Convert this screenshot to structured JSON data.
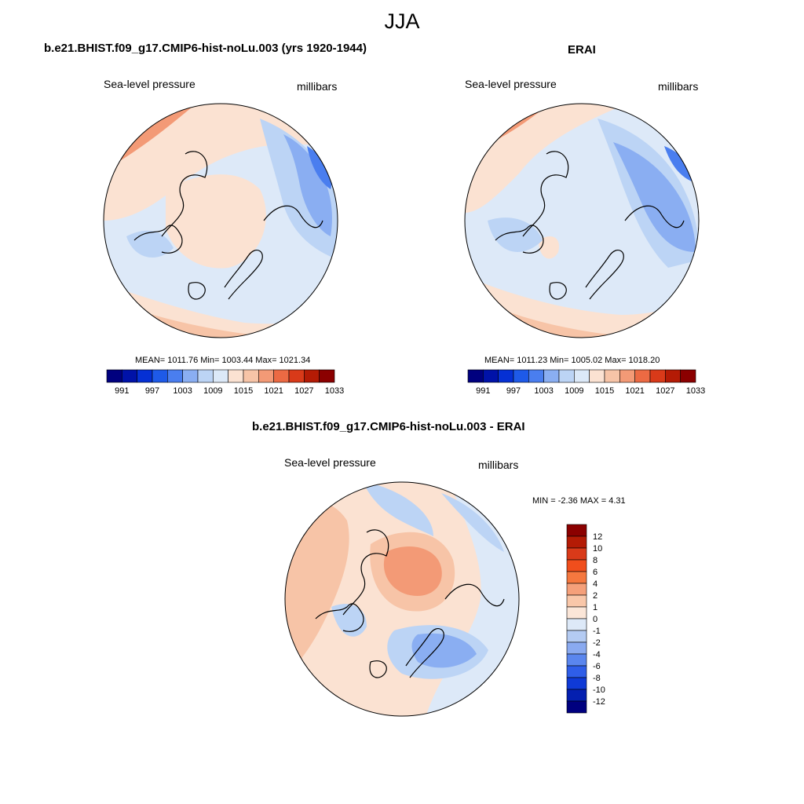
{
  "figure": {
    "title": "JJA",
    "panels": [
      {
        "title": "b.e21.BHIST.f09_g17.CMIP6-hist-noLu.003 (yrs 1920-1944)",
        "variable": "Sea-level pressure",
        "units": "millibars",
        "stats": "MEAN= 1011.76  Min= 1003.44  Max= 1021.34"
      },
      {
        "title": "ERAI",
        "variable": "Sea-level pressure",
        "units": "millibars",
        "stats": "MEAN= 1011.23  Min= 1005.02  Max= 1018.20"
      },
      {
        "title": "b.e21.BHIST.f09_g17.CMIP6-hist-noLu.003 - ERAI",
        "variable": "Sea-level pressure",
        "units": "millibars",
        "stats": "MIN =  -2.36 MAX =   4.31"
      }
    ]
  },
  "colorbars": {
    "absolute": {
      "tick_labels": [
        "991",
        "997",
        "1003",
        "1009",
        "1015",
        "1021",
        "1027",
        "1033"
      ],
      "colors": [
        "#00007f",
        "#0012a8",
        "#0530d4",
        "#1e5ae8",
        "#4a7eef",
        "#8aaef2",
        "#bcd4f5",
        "#dce9f8",
        "#fbe2d2",
        "#f7c4a7",
        "#f39a76",
        "#ec6a43",
        "#d93a19",
        "#b41b05",
        "#8b0000"
      ]
    },
    "difference": {
      "tick_labels": [
        "12",
        "10",
        "8",
        "6",
        "4",
        "2",
        "1",
        "0",
        "-1",
        "-2",
        "-4",
        "-6",
        "-8",
        "-10",
        "-12"
      ],
      "colors": [
        "#8b0000",
        "#b41b05",
        "#d93a19",
        "#f04e1c",
        "#f5783f",
        "#f5a07a",
        "#f9c7a9",
        "#fbe6d8",
        "#dde9f8",
        "#b4cbf2",
        "#8aaaf0",
        "#5a86ee",
        "#2f5ee8",
        "#0f3ad6",
        "#041fb0",
        "#00007f"
      ]
    }
  },
  "map_colors": {
    "ocean_neutral": "#dde9f8",
    "light_pos": "#fbe2d2",
    "med_pos": "#f7c4a7",
    "strong_pos": "#f39a76",
    "light_neg": "#bcd4f5",
    "med_neg": "#8aaef2",
    "strong_neg": "#4a7eef"
  }
}
